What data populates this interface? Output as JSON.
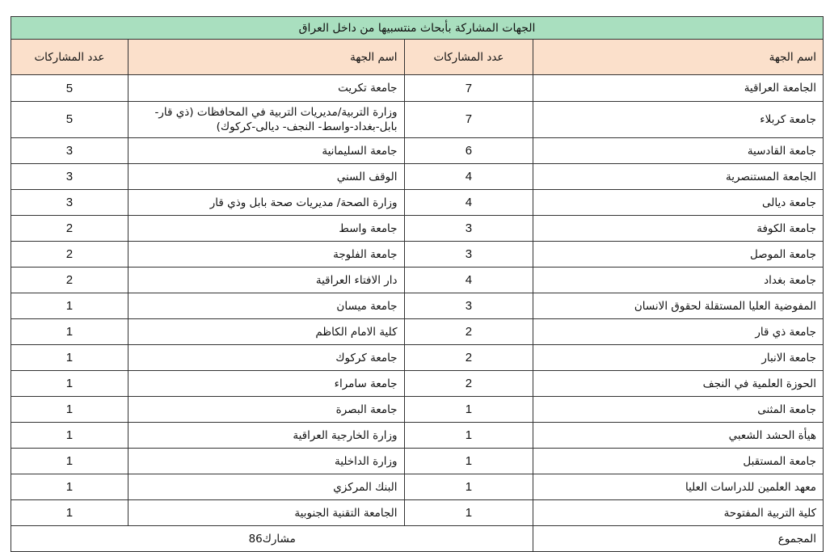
{
  "title": "الجهات المشاركة بأبحاث منتسبيها من داخل العراق",
  "headers": {
    "name": "اسم الجهة",
    "count": "عدد المشاركات"
  },
  "rows": [
    {
      "name1": "الجامعة العراقية",
      "count1": "7",
      "name2": "جامعة تكريت",
      "count2": "5"
    },
    {
      "name1": "جامعة كربلاء",
      "count1": "7",
      "name2": "وزارة التربية/مديريات التربية في المحافظات (ذي قار-بابل-بغداد-واسط- النجف- ديالى-كركوك)",
      "count2": "5"
    },
    {
      "name1": "جامعة القادسية",
      "count1": "6",
      "name2": "جامعة السليمانية",
      "count2": "3"
    },
    {
      "name1": "الجامعة المستنصرية",
      "count1": "4",
      "name2": "الوقف السني",
      "count2": "3"
    },
    {
      "name1": "جامعة ديالى",
      "count1": "4",
      "name2": "وزارة الصحة/ مديريات صحة بابل وذي قار",
      "count2": "3"
    },
    {
      "name1": "جامعة الكوفة",
      "count1": "3",
      "name2": "جامعة واسط",
      "count2": "2"
    },
    {
      "name1": "جامعة الموصل",
      "count1": "3",
      "name2": "جامعة الفلوجة",
      "count2": "2"
    },
    {
      "name1": "جامعة بغداد",
      "count1": "4",
      "name2": "دار الافتاء العراقية",
      "count2": "2"
    },
    {
      "name1": "المفوضية العليا المستقلة لحقوق الانسان",
      "count1": "3",
      "name2": "جامعة ميسان",
      "count2": "1"
    },
    {
      "name1": "جامعة ذي قار",
      "count1": "2",
      "name2": "كلية الامام الكاظم",
      "count2": "1"
    },
    {
      "name1": "جامعة الانبار",
      "count1": "2",
      "name2": "جامعة كركوك",
      "count2": "1"
    },
    {
      "name1": "الحوزة العلمية في النجف",
      "count1": "2",
      "name2": "جامعة سامراء",
      "count2": "1"
    },
    {
      "name1": "جامعة المثنى",
      "count1": "1",
      "name2": "جامعة البصرة",
      "count2": "1"
    },
    {
      "name1": "هيأة الحشد الشعبي",
      "count1": "1",
      "name2": "وزارة الخارجية العراقية",
      "count2": "1"
    },
    {
      "name1": "جامعة المستقبل",
      "count1": "1",
      "name2": "وزارة الداخلية",
      "count2": "1"
    },
    {
      "name1": "معهد العلمين للدراسات العليا",
      "count1": "1",
      "name2": "البنك المركزي",
      "count2": "1"
    },
    {
      "name1": "كلية التربية المفتوحة",
      "count1": "1",
      "name2": "الجامعة التقنية الجنوبية",
      "count2": "1"
    }
  ],
  "total": {
    "label": "المجموع",
    "value": "مشارك86"
  },
  "colors": {
    "title_bg": "#a9dfbf",
    "header_bg": "#fbe0cb"
  }
}
